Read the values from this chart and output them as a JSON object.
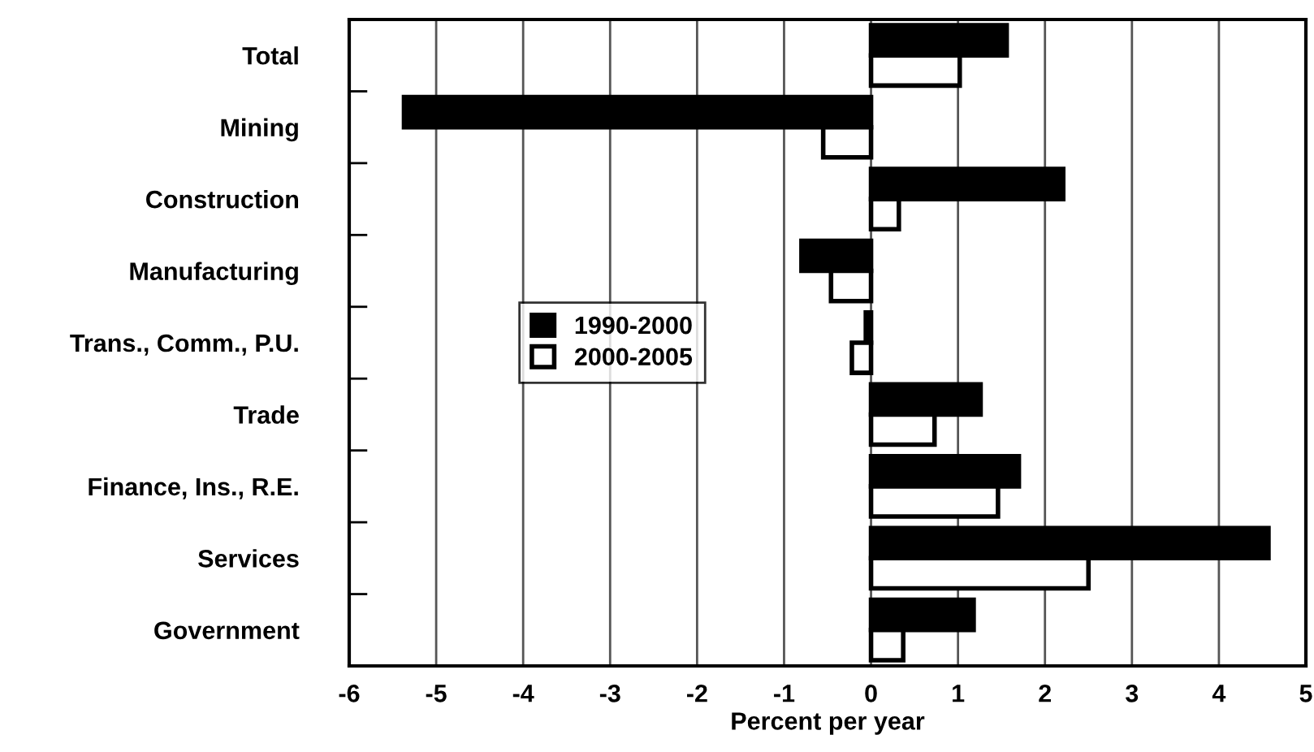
{
  "chart_data": {
    "type": "bar",
    "orientation": "horizontal",
    "xlabel": "Percent per year",
    "categories": [
      "Total",
      "Mining",
      "Construction",
      "Manufacturing",
      "Trans., Comm., P.U.",
      "Trade",
      "Finance, Ins., R.E.",
      "Services",
      "Government"
    ],
    "series": [
      {
        "name": "1990-2000",
        "color": "#000000",
        "values": [
          1.56,
          -5.37,
          2.21,
          -0.8,
          -0.06,
          1.26,
          1.7,
          4.57,
          1.18
        ]
      },
      {
        "name": "2000-2005",
        "color": "#ffffff",
        "values": [
          1.02,
          -0.55,
          0.32,
          -0.46,
          -0.22,
          0.73,
          1.46,
          2.5,
          0.37
        ]
      }
    ],
    "xlim": [
      -6,
      5
    ],
    "xticks": [
      -6,
      -5,
      -4,
      -3,
      -2,
      -1,
      0,
      1,
      2,
      3,
      4,
      5
    ],
    "grid": "x",
    "legend": "left"
  }
}
